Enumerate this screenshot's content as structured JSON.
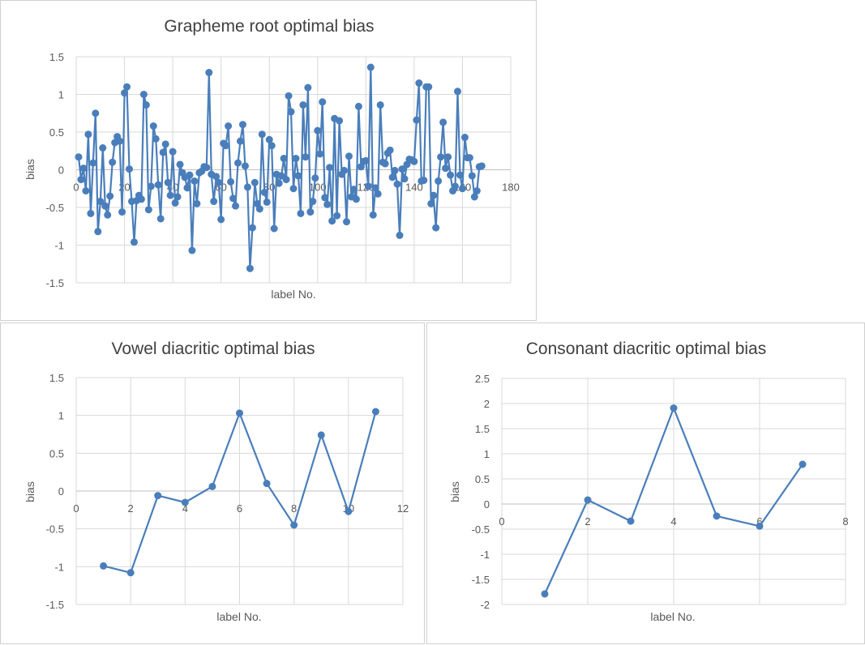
{
  "chart_data": [
    {
      "type": "line",
      "title": "Grapheme root optimal bias",
      "xlabel": "label No.",
      "ylabel": "bias",
      "xlim": [
        0,
        180
      ],
      "ylim": [
        -1.5,
        1.5
      ],
      "x_ticks": [
        0,
        20,
        40,
        60,
        80,
        100,
        120,
        140,
        160,
        180
      ],
      "y_ticks": [
        1.5,
        1,
        0.5,
        0,
        -0.5,
        -1,
        -1.5
      ],
      "y_tick_labels": [
        "1.5",
        "1",
        "0.5",
        "0",
        "-0.5",
        "-1",
        "-1.5"
      ],
      "grid": true,
      "legend": "none",
      "color": "#4a7ebb",
      "series": [
        {
          "x": [
            1,
            2,
            3,
            4,
            5,
            6,
            7,
            8,
            9,
            10,
            11,
            12,
            13,
            14,
            15,
            16,
            17,
            18,
            19,
            20,
            21,
            22,
            23,
            24,
            25,
            26,
            27,
            28,
            29,
            30,
            31,
            32,
            33,
            34,
            35,
            36,
            37,
            38,
            39,
            40,
            41,
            42,
            43,
            44,
            45,
            46,
            47,
            48,
            49,
            50,
            51,
            52,
            53,
            54,
            55,
            56,
            57,
            58,
            59,
            60,
            61,
            62,
            63,
            64,
            65,
            66,
            67,
            68,
            69,
            70,
            71,
            72,
            73,
            74,
            75,
            76,
            77,
            78,
            79,
            80,
            81,
            82,
            83,
            84,
            85,
            86,
            87,
            88,
            89,
            90,
            91,
            92,
            93,
            94,
            95,
            96,
            97,
            98,
            99,
            100,
            101,
            102,
            103,
            104,
            105,
            106,
            107,
            108,
            109,
            110,
            111,
            112,
            113,
            114,
            115,
            116,
            117,
            118,
            119,
            120,
            121,
            122,
            123,
            124,
            125,
            126,
            127,
            128,
            129,
            130,
            131,
            132,
            133,
            134,
            135,
            136,
            137,
            138,
            139,
            140,
            141,
            142,
            143,
            144,
            145,
            146,
            147,
            148,
            149,
            150,
            151,
            152,
            153,
            154,
            155,
            156,
            157,
            158,
            159,
            160,
            161,
            162,
            163,
            164,
            165,
            166,
            167,
            168
          ],
          "values": [
            0.17,
            -0.13,
            0.02,
            -0.28,
            0.47,
            -0.58,
            0.09,
            0.75,
            -0.82,
            -0.42,
            0.29,
            -0.48,
            -0.6,
            -0.35,
            0.1,
            0.36,
            0.44,
            0.38,
            -0.56,
            1.02,
            1.1,
            0.01,
            -0.42,
            -0.96,
            -0.41,
            -0.34,
            -0.39,
            1.0,
            0.86,
            -0.53,
            -0.22,
            0.58,
            0.41,
            -0.2,
            -0.65,
            0.23,
            0.34,
            -0.17,
            -0.34,
            0.24,
            -0.44,
            -0.36,
            0.07,
            -0.04,
            -0.1,
            -0.24,
            -0.07,
            -1.07,
            -0.15,
            -0.45,
            -0.04,
            -0.02,
            0.04,
            0.03,
            1.29,
            -0.06,
            -0.42,
            -0.09,
            -0.17,
            -0.66,
            0.35,
            0.32,
            0.58,
            -0.16,
            -0.38,
            -0.48,
            0.09,
            0.38,
            0.6,
            0.05,
            -0.23,
            -1.31,
            -0.77,
            -0.17,
            -0.45,
            -0.52,
            0.47,
            -0.3,
            -0.43,
            0.4,
            0.32,
            -0.78,
            -0.06,
            -0.18,
            -0.08,
            0.15,
            -0.13,
            0.98,
            0.77,
            -0.25,
            0.15,
            -0.08,
            -0.58,
            0.86,
            0.17,
            1.09,
            -0.56,
            -0.42,
            -0.11,
            0.52,
            0.21,
            0.9,
            -0.37,
            -0.46,
            0.03,
            -0.68,
            0.68,
            -0.61,
            0.65,
            -0.06,
            -0.01,
            -0.69,
            0.18,
            -0.36,
            -0.26,
            -0.39,
            0.84,
            0.04,
            0.11,
            0.12,
            -0.22,
            1.36,
            -0.6,
            -0.24,
            -0.32,
            0.86,
            0.1,
            0.08,
            0.22,
            0.26,
            -0.1,
            -0.01,
            -0.19,
            -0.87,
            0.01,
            -0.12,
            0.07,
            0.14,
            0.13,
            0.11,
            0.66,
            1.15,
            -0.15,
            -0.14,
            1.1,
            1.1,
            -0.45,
            -0.34,
            -0.77,
            -0.15,
            0.17,
            0.63,
            0.02,
            0.17,
            -0.07,
            -0.28,
            -0.22,
            1.04,
            -0.07,
            -0.25,
            0.43,
            0.16,
            0.16,
            -0.08,
            -0.36,
            -0.28,
            0.04,
            0.05
          ]
        }
      ]
    },
    {
      "type": "line",
      "title": "Vowel diacritic optimal bias",
      "xlabel": "label No.",
      "ylabel": "bias",
      "xlim": [
        0,
        12
      ],
      "ylim": [
        -1.5,
        1.5
      ],
      "x_ticks": [
        0,
        2,
        4,
        6,
        8,
        10,
        12
      ],
      "y_ticks": [
        1.5,
        1,
        0.5,
        0,
        -0.5,
        -1,
        -1.5
      ],
      "y_tick_labels": [
        "1.5",
        "1",
        "0.5",
        "0",
        "-0.5",
        "-1",
        "-1.5"
      ],
      "grid": true,
      "legend": "none",
      "color": "#4a7ebb",
      "series": [
        {
          "x": [
            1,
            2,
            3,
            4,
            5,
            6,
            7,
            8,
            9,
            10,
            11
          ],
          "values": [
            -0.99,
            -1.08,
            -0.06,
            -0.15,
            0.06,
            1.03,
            0.1,
            -0.45,
            0.74,
            -0.27,
            1.05
          ]
        }
      ]
    },
    {
      "type": "line",
      "title": "Consonant diacritic optimal bias",
      "xlabel": "label No.",
      "ylabel": "bias",
      "xlim": [
        0,
        8
      ],
      "ylim": [
        -2,
        2.5
      ],
      "x_ticks": [
        0,
        2,
        4,
        6,
        8
      ],
      "y_ticks": [
        2.5,
        2,
        1.5,
        1,
        0.5,
        0,
        -0.5,
        -1,
        -1.5,
        -2
      ],
      "y_tick_labels": [
        "2.5",
        "2",
        "1.5",
        "1",
        "0.5",
        "0",
        "-0.5",
        "-1",
        "-1.5",
        "-2"
      ],
      "grid": true,
      "legend": "none",
      "color": "#4a7ebb",
      "series": [
        {
          "x": [
            1,
            2,
            3,
            4,
            5,
            6,
            7
          ],
          "values": [
            -1.79,
            0.08,
            -0.34,
            1.91,
            -0.24,
            -0.44,
            0.79
          ]
        }
      ]
    }
  ]
}
